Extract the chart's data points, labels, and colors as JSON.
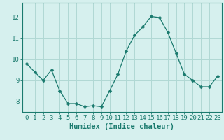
{
  "x": [
    0,
    1,
    2,
    3,
    4,
    5,
    6,
    7,
    8,
    9,
    10,
    11,
    12,
    13,
    14,
    15,
    16,
    17,
    18,
    19,
    20,
    21,
    22,
    23
  ],
  "y": [
    9.8,
    9.4,
    9.0,
    9.5,
    8.5,
    7.9,
    7.9,
    7.75,
    7.8,
    7.75,
    8.5,
    9.3,
    10.4,
    11.15,
    11.55,
    12.05,
    12.0,
    11.3,
    10.3,
    9.3,
    9.0,
    8.7,
    8.7,
    9.2
  ],
  "line_color": "#1a7a6e",
  "marker": "D",
  "marker_size": 2.5,
  "bg_color": "#d6f0ee",
  "grid_color": "#b0d8d4",
  "axis_color": "#1a7a6e",
  "xlabel": "Humidex (Indice chaleur)",
  "xlim": [
    -0.5,
    23.5
  ],
  "ylim": [
    7.5,
    12.7
  ],
  "yticks": [
    8,
    9,
    10,
    11,
    12
  ],
  "xticks": [
    0,
    1,
    2,
    3,
    4,
    5,
    6,
    7,
    8,
    9,
    10,
    11,
    12,
    13,
    14,
    15,
    16,
    17,
    18,
    19,
    20,
    21,
    22,
    23
  ],
  "label_fontsize": 7.5,
  "tick_fontsize": 6.5
}
